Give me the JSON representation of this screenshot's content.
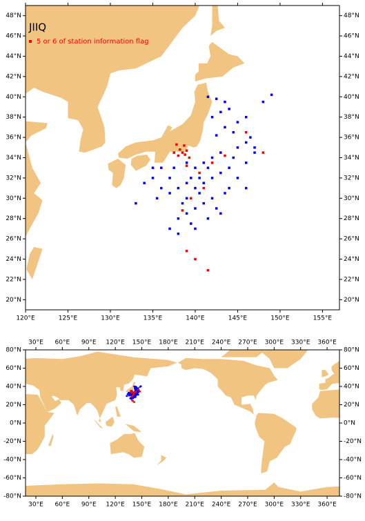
{
  "chart_data": [
    {
      "type": "scatter",
      "title": "JIIQ",
      "xlim": [
        120,
        157
      ],
      "ylim": [
        19,
        49
      ],
      "xticks": [
        {
          "value": 120,
          "label": "120°E"
        },
        {
          "value": 125,
          "label": "125°E"
        },
        {
          "value": 130,
          "label": "130°E"
        },
        {
          "value": 135,
          "label": "135°E"
        },
        {
          "value": 140,
          "label": "140°E"
        },
        {
          "value": 145,
          "label": "145°E"
        },
        {
          "value": 150,
          "label": "150°E"
        },
        {
          "value": 155,
          "label": "155°E"
        }
      ],
      "yticks": [
        {
          "value": 20,
          "label": "20°N"
        },
        {
          "value": 22,
          "label": "22°N"
        },
        {
          "value": 24,
          "label": "24°N"
        },
        {
          "value": 26,
          "label": "26°N"
        },
        {
          "value": 28,
          "label": "28°N"
        },
        {
          "value": 30,
          "label": "30°N"
        },
        {
          "value": 32,
          "label": "32°N"
        },
        {
          "value": 34,
          "label": "34°N"
        },
        {
          "value": 36,
          "label": "36°N"
        },
        {
          "value": 38,
          "label": "38°N"
        },
        {
          "value": 40,
          "label": "40°N"
        },
        {
          "value": 42,
          "label": "42°N"
        },
        {
          "value": 44,
          "label": "44°N"
        },
        {
          "value": 46,
          "label": "46°N"
        },
        {
          "value": 48,
          "label": "48°N"
        }
      ],
      "series": [
        {
          "name": "5 or 6 of station information flag",
          "color": "#ff0000",
          "x": [
            138.5,
            138.2,
            138.8,
            139,
            138,
            137.5,
            139.3,
            140.5,
            141,
            138.5,
            139.5,
            142,
            146,
            148,
            139,
            140,
            141.5,
            143.5,
            139,
            137.8,
            138.7
          ],
          "values": [
            34.5,
            34.8,
            34.3,
            34.7,
            34.2,
            34.5,
            34,
            32.5,
            31,
            28.8,
            30,
            33.5,
            36.5,
            34.5,
            24.8,
            24,
            22.9,
            34.2,
            33.2,
            35.3,
            35.2
          ]
        },
        {
          "color": "#0000ff",
          "x": [
            141.5,
            142.5,
            143.5,
            144,
            143,
            142,
            145,
            146,
            143.5,
            144.5,
            142.5,
            146.5,
            149,
            148,
            147,
            146,
            144.5,
            143,
            142,
            141,
            140,
            139,
            137.5,
            136,
            135,
            134,
            133,
            135.5,
            137,
            138,
            139,
            140,
            141,
            142,
            143,
            144,
            145,
            146,
            142,
            141,
            140,
            139,
            138,
            137,
            139.5,
            141.5,
            143,
            138,
            140,
            139,
            140.5,
            141.5,
            139.5,
            137,
            136,
            135,
            144,
            145,
            146,
            147,
            143.5,
            142.5,
            140.5,
            138.5
          ],
          "values": [
            40,
            39.8,
            39.5,
            38.8,
            38.5,
            38,
            37.5,
            38,
            37,
            36.5,
            36.2,
            36,
            40.2,
            39.5,
            34.5,
            33.5,
            34,
            34.5,
            34,
            33.5,
            33,
            33.5,
            33,
            33,
            32,
            31.5,
            29.5,
            30,
            30.5,
            31,
            31.5,
            31,
            31.5,
            32,
            32.5,
            33,
            32,
            31,
            30,
            29.5,
            29,
            28.5,
            28,
            27,
            27.5,
            28,
            28.5,
            26.5,
            27,
            30,
            30.5,
            33,
            32,
            32,
            31,
            33,
            31,
            35,
            35.5,
            35,
            30.5,
            29,
            32,
            29.5
          ]
        }
      ]
    },
    {
      "type": "scatter",
      "xlim": [
        18.3,
        374
      ],
      "ylim": [
        -80,
        80
      ],
      "xticks": [
        {
          "value": 30,
          "label": "30°E"
        },
        {
          "value": 60,
          "label": "60°E"
        },
        {
          "value": 90,
          "label": "90°E"
        },
        {
          "value": 120,
          "label": "120°E"
        },
        {
          "value": 150,
          "label": "150°E"
        },
        {
          "value": 180,
          "label": "180°E"
        },
        {
          "value": 210,
          "label": "210°E"
        },
        {
          "value": 240,
          "label": "240°E"
        },
        {
          "value": 270,
          "label": "270°E"
        },
        {
          "value": 300,
          "label": "300°E"
        },
        {
          "value": 330,
          "label": "330°E"
        },
        {
          "value": 360,
          "label": "360°E"
        }
      ],
      "yticks": [
        {
          "value": -80,
          "label": "-80°N"
        },
        {
          "value": -60,
          "label": "-60°N"
        },
        {
          "value": -40,
          "label": "-40°N"
        },
        {
          "value": -20,
          "label": "-20°N"
        },
        {
          "value": 0,
          "label": "0°N"
        },
        {
          "value": 20,
          "label": "20°N"
        },
        {
          "value": 40,
          "label": "40°N"
        },
        {
          "value": 60,
          "label": "60°N"
        },
        {
          "value": 80,
          "label": "80°N"
        }
      ]
    }
  ]
}
